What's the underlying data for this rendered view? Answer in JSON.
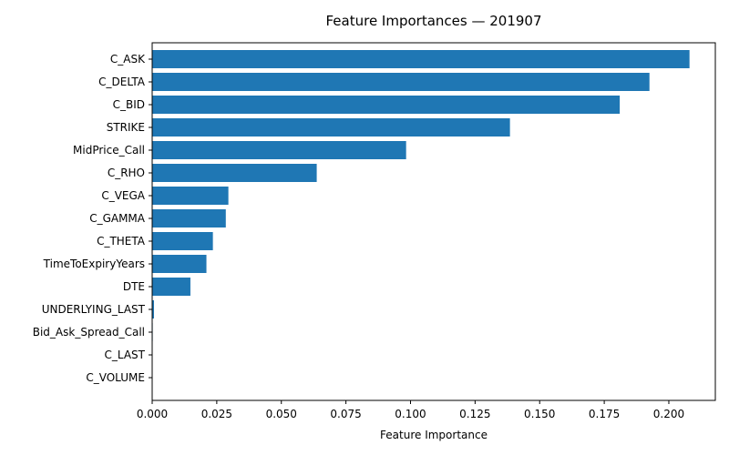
{
  "chart_data": {
    "type": "bar",
    "orientation": "horizontal",
    "title": "Feature Importances — 201907",
    "xlabel": "Feature Importance",
    "ylabel": "",
    "xlim": [
      0,
      0.218
    ],
    "xticks": [
      "0.000",
      "0.025",
      "0.050",
      "0.075",
      "0.100",
      "0.125",
      "0.150",
      "0.175",
      "0.200"
    ],
    "grid": false,
    "bar_color": "#1f77b4",
    "categories": [
      "C_ASK",
      "C_DELTA",
      "C_BID",
      "STRIKE",
      "MidPrice_Call",
      "C_RHO",
      "C_VEGA",
      "C_GAMMA",
      "C_THETA",
      "TimeToExpiryYears",
      "DTE",
      "UNDERLYING_LAST",
      "Bid_Ask_Spread_Call",
      "C_LAST",
      "C_VOLUME"
    ],
    "values": [
      0.208,
      0.1925,
      0.181,
      0.1385,
      0.0983,
      0.0637,
      0.0295,
      0.0285,
      0.0235,
      0.021,
      0.0148,
      0.0007,
      0.0002,
      0.0001,
      0.0
    ]
  }
}
